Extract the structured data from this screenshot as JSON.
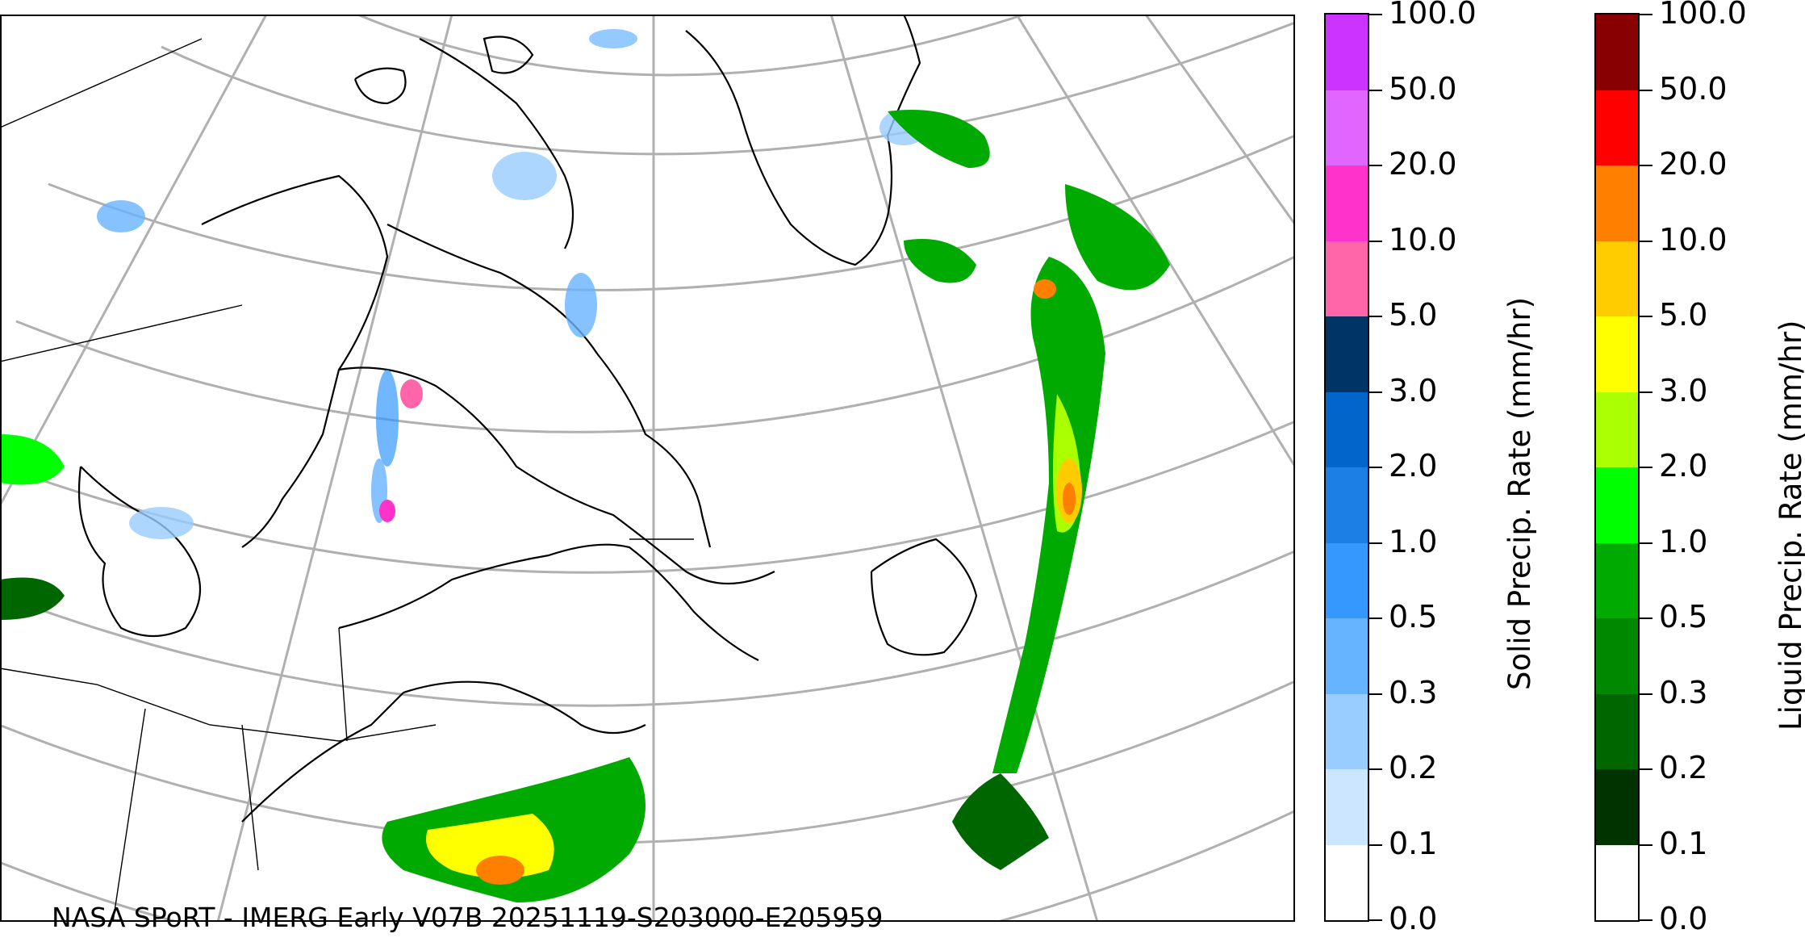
{
  "map": {
    "credit": "NASA SPoRT - IMERG Early V07B 20251119-S203000-E205959",
    "region": "Eastern Canada / Northeastern US / North Atlantic",
    "projection": "polar-stereographic style with lat/lon graticule"
  },
  "colorbars": {
    "solid": {
      "title": "Solid Precip. Rate (mm/hr)",
      "ticks": [
        "0.0",
        "0.1",
        "0.2",
        "0.3",
        "0.5",
        "1.0",
        "2.0",
        "3.0",
        "5.0",
        "10.0",
        "20.0",
        "50.0",
        "100.0"
      ],
      "colors": [
        "#ffffff",
        "#cce6ff",
        "#99ccff",
        "#66b3ff",
        "#3399ff",
        "#1a80e6",
        "#0066cc",
        "#003366",
        "#ff66aa",
        "#ff33cc",
        "#e066ff",
        "#cc33ff",
        "#9900cc"
      ]
    },
    "liquid": {
      "title": "Liquid Precip. Rate (mm/hr)",
      "ticks": [
        "0.0",
        "0.1",
        "0.2",
        "0.3",
        "0.5",
        "1.0",
        "2.0",
        "3.0",
        "5.0",
        "10.0",
        "20.0",
        "50.0",
        "100.0"
      ],
      "colors": [
        "#ffffff",
        "#003300",
        "#006600",
        "#008800",
        "#00aa00",
        "#00ff00",
        "#aaff00",
        "#ffff00",
        "#ffcc00",
        "#ff8000",
        "#ff0000",
        "#880000",
        "#440000"
      ]
    }
  }
}
